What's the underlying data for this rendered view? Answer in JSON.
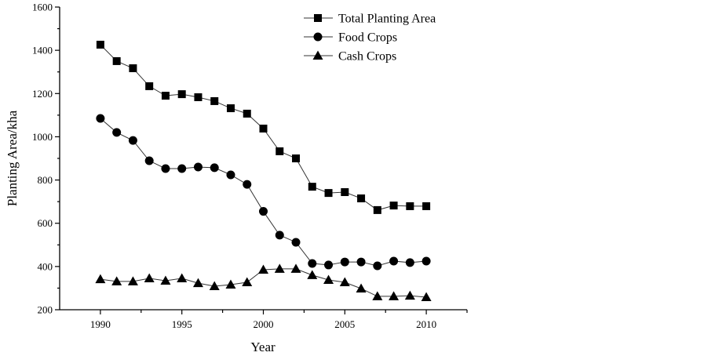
{
  "chart_data": {
    "type": "line",
    "title": "",
    "xlabel": "Year",
    "ylabel": "Planting Area/kha",
    "xlim": [
      1987.5,
      2012.5
    ],
    "ylim": [
      200,
      1600
    ],
    "xticks": [
      1990,
      1995,
      2000,
      2005,
      2010
    ],
    "xminor": [
      1992.5,
      1997.5,
      2002.5,
      2007.5,
      2012.5
    ],
    "yticks": [
      200,
      400,
      600,
      800,
      1000,
      1200,
      1400,
      1600
    ],
    "yminor": [
      300,
      500,
      700,
      900,
      1100,
      1300,
      1500
    ],
    "grid": false,
    "legend_position": "top-center",
    "x": [
      1990,
      1991,
      1992,
      1993,
      1994,
      1995,
      1996,
      1997,
      1998,
      1999,
      2000,
      2001,
      2002,
      2003,
      2004,
      2005,
      2006,
      2007,
      2008,
      2009,
      2010
    ],
    "series": [
      {
        "name": "Total Planting Area",
        "marker": "square",
        "values": [
          1426,
          1350,
          1317,
          1234,
          1190,
          1197,
          1183,
          1165,
          1132,
          1107,
          1038,
          933,
          900,
          769,
          740,
          744,
          715,
          661,
          682,
          679,
          679
        ]
      },
      {
        "name": "Food Crops",
        "marker": "circle",
        "values": [
          1085,
          1020,
          983,
          889,
          853,
          853,
          860,
          857,
          824,
          780,
          655,
          545,
          512,
          414,
          407,
          421,
          421,
          403,
          425,
          418,
          425
        ]
      },
      {
        "name": "Cash Crops",
        "marker": "triangle",
        "values": [
          341,
          331,
          331,
          345,
          334,
          345,
          323,
          309,
          316,
          327,
          385,
          389,
          389,
          360,
          338,
          327,
          298,
          262,
          262,
          265,
          258
        ]
      }
    ]
  }
}
